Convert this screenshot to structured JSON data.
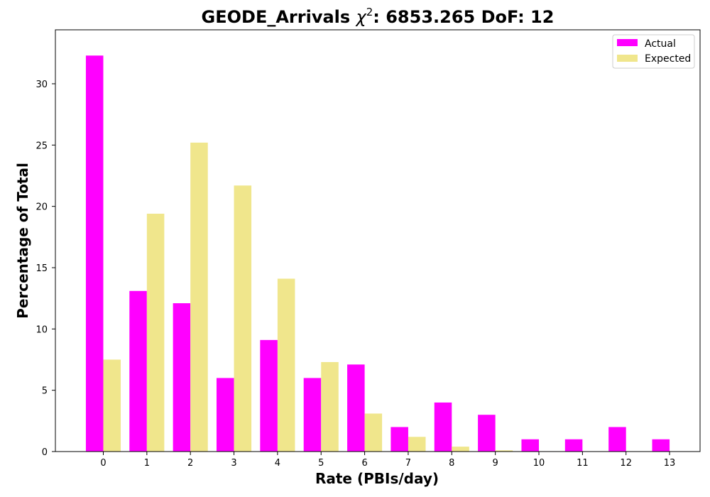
{
  "chart_data": {
    "type": "bar",
    "title": {
      "prefix": "GEODE_Arrivals ",
      "chi": "χ",
      "sup": "2",
      "suffix": ": 6853.265 DoF: 12"
    },
    "xlabel": "Rate (PBIs/day)",
    "ylabel": "Percentage of Total",
    "categories": [
      "0",
      "1",
      "2",
      "3",
      "4",
      "5",
      "6",
      "7",
      "8",
      "9",
      "10",
      "11",
      "12",
      "13"
    ],
    "series": [
      {
        "name": "Actual",
        "color": "#ff00ff",
        "values": [
          32.3,
          13.1,
          12.1,
          6.0,
          9.1,
          6.0,
          7.1,
          2.0,
          4.0,
          3.0,
          1.0,
          1.0,
          2.0,
          1.0
        ]
      },
      {
        "name": "Expected",
        "color": "#f0e68c",
        "values": [
          7.5,
          19.4,
          25.2,
          21.7,
          14.1,
          7.3,
          3.1,
          1.2,
          0.4,
          0.1,
          0.03,
          0.0,
          0.0,
          0.0
        ]
      }
    ],
    "ylim": [
      0,
      34.4
    ],
    "yticks": [
      "0",
      "5",
      "10",
      "15",
      "20",
      "25",
      "30"
    ],
    "xlim": [
      -1.1,
      13.7
    ],
    "legend_position": "top-right",
    "grid": false
  }
}
